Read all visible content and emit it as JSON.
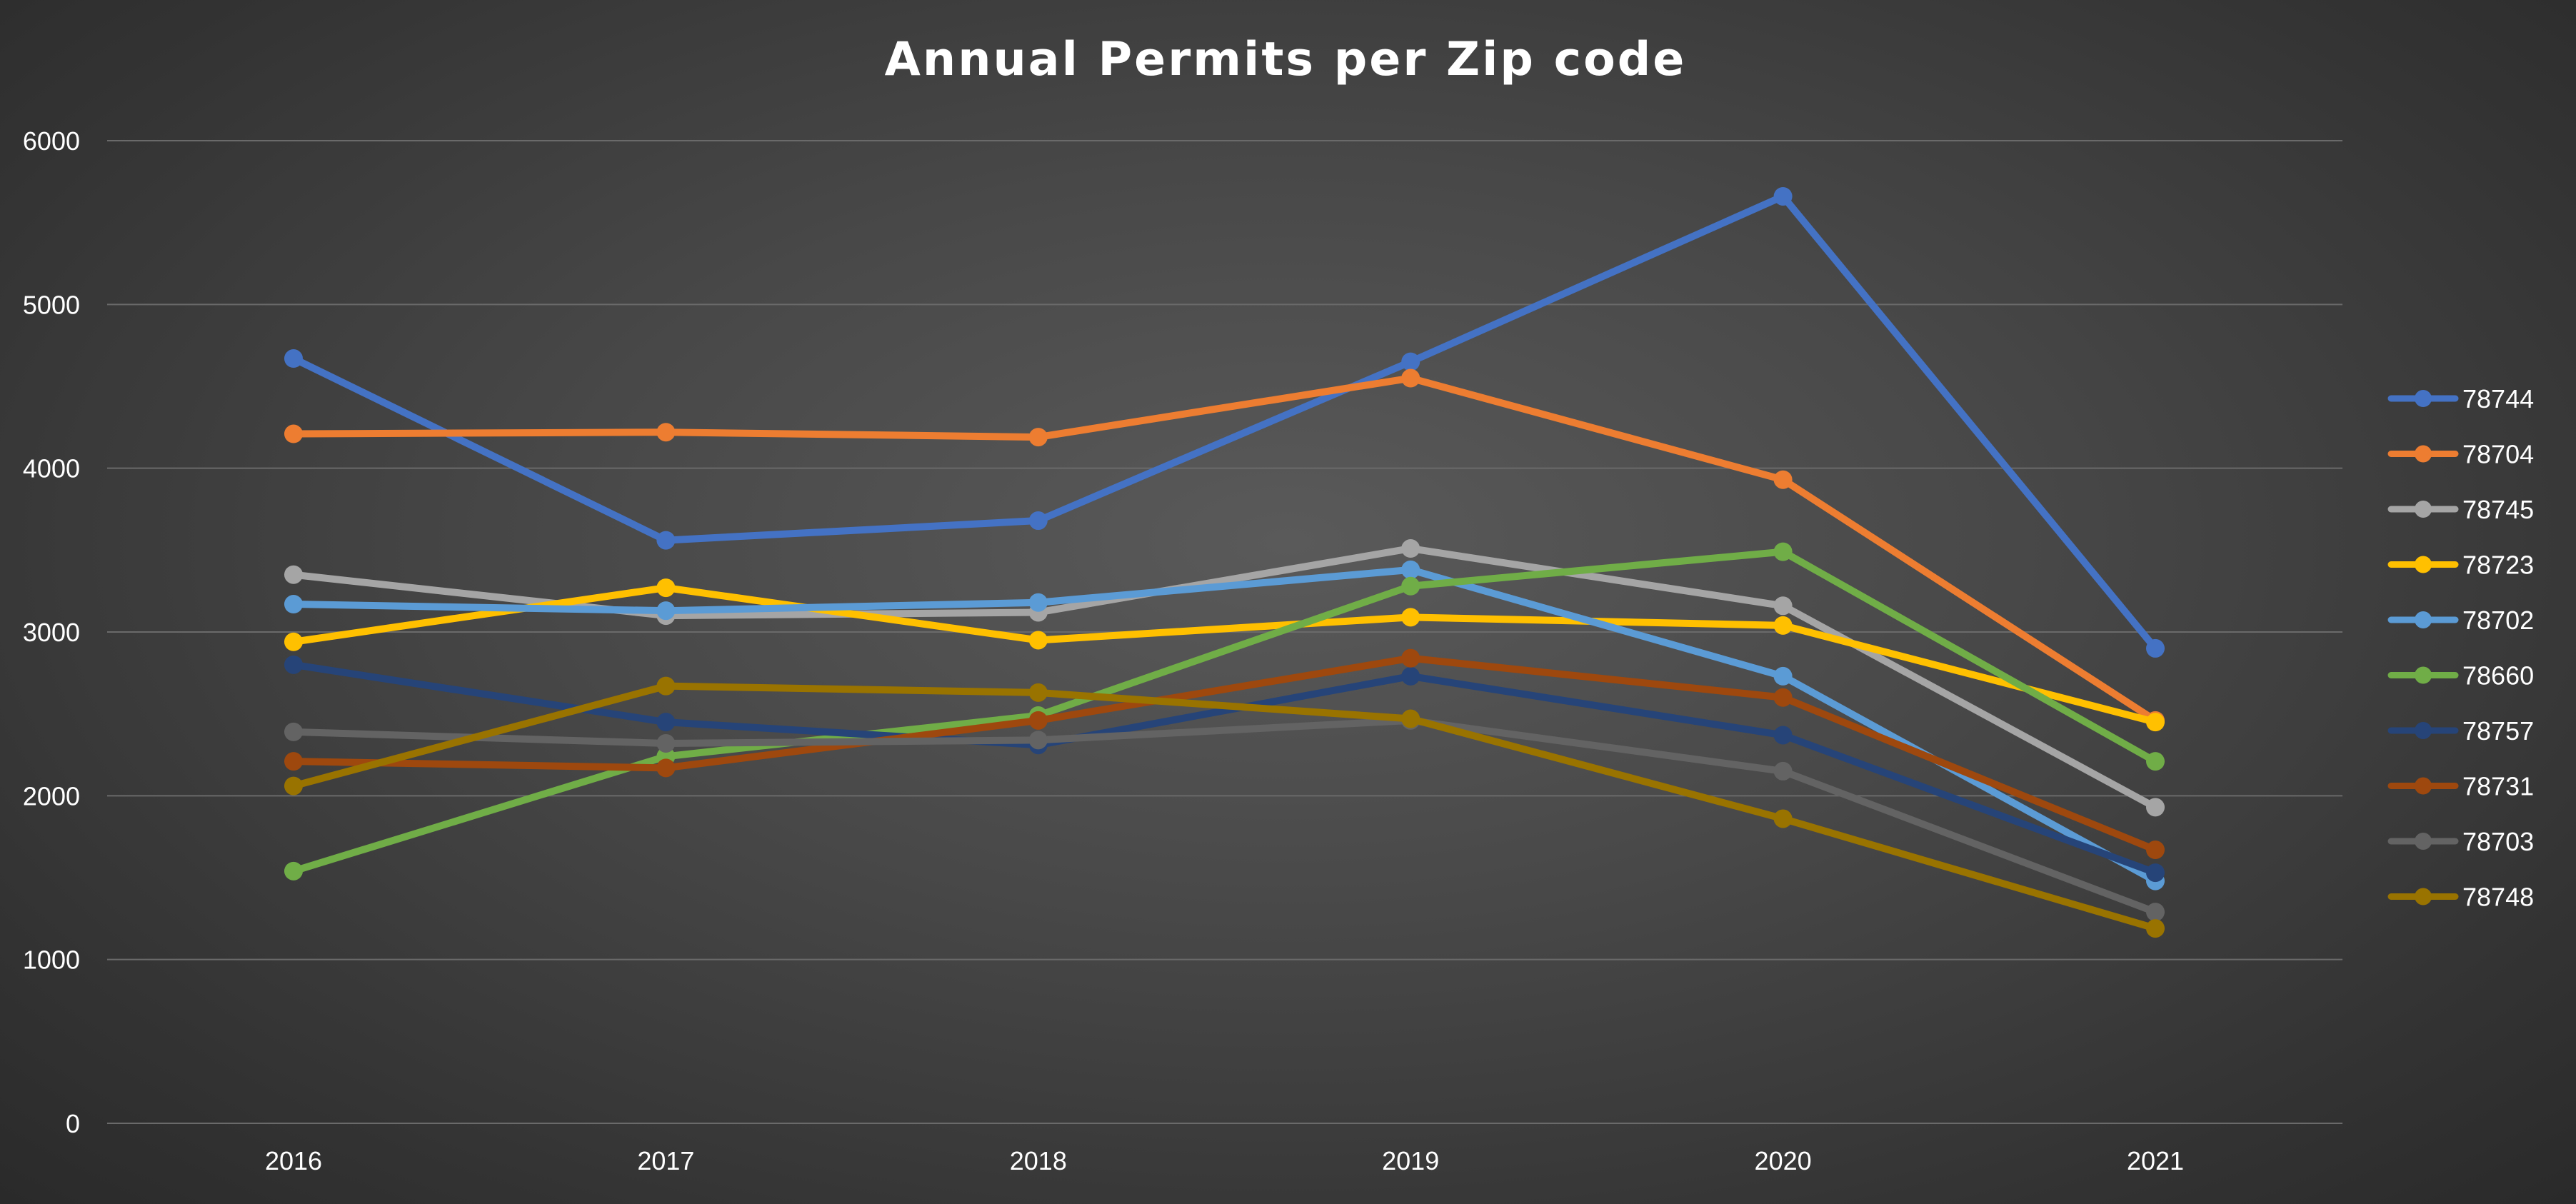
{
  "chart_data": {
    "type": "line",
    "title": "Annual Permits per Zip code",
    "xlabel": "",
    "ylabel": "",
    "ylim": [
      0,
      6000
    ],
    "yticks": [
      0,
      1000,
      2000,
      3000,
      4000,
      5000,
      6000
    ],
    "categories": [
      "2016",
      "2017",
      "2018",
      "2019",
      "2020",
      "2021"
    ],
    "grid": true,
    "legend_position": "right",
    "series": [
      {
        "name": "78744",
        "color": "#4472C4",
        "values": [
          4670,
          3560,
          3680,
          4650,
          5660,
          2900
        ]
      },
      {
        "name": "78704",
        "color": "#ED7D31",
        "values": [
          4210,
          4220,
          4190,
          4550,
          3930,
          2460
        ]
      },
      {
        "name": "78745",
        "color": "#A5A5A5",
        "values": [
          3350,
          3100,
          3120,
          3510,
          3160,
          1930
        ]
      },
      {
        "name": "78723",
        "color": "#FFC000",
        "values": [
          2940,
          3270,
          2950,
          3090,
          3040,
          2450
        ]
      },
      {
        "name": "78702",
        "color": "#5B9BD5",
        "values": [
          3170,
          3130,
          3180,
          3380,
          2730,
          1480
        ]
      },
      {
        "name": "78660",
        "color": "#70AD47",
        "values": [
          1540,
          2240,
          2490,
          3280,
          3490,
          2210
        ]
      },
      {
        "name": "78757",
        "color": "#264478",
        "values": [
          2800,
          2450,
          2310,
          2730,
          2370,
          1530
        ]
      },
      {
        "name": "78731",
        "color": "#9E480E",
        "values": [
          2210,
          2170,
          2460,
          2840,
          2600,
          1670
        ]
      },
      {
        "name": "78703",
        "color": "#636363",
        "values": [
          2390,
          2320,
          2340,
          2460,
          2150,
          1290
        ]
      },
      {
        "name": "78748",
        "color": "#997300",
        "values": [
          2060,
          2670,
          2630,
          2470,
          1860,
          1190
        ]
      }
    ]
  }
}
